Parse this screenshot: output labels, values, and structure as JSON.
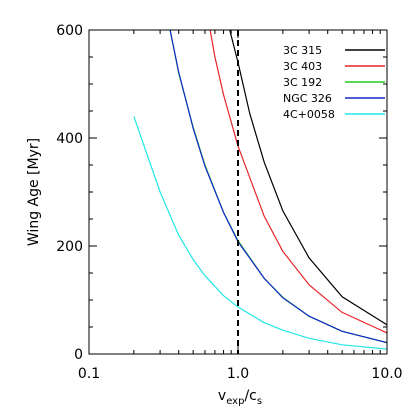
{
  "chart_data": {
    "type": "line",
    "xlabel": {
      "main": "v",
      "sub1": "exp",
      "slash": "/c",
      "sub2": "s"
    },
    "ylabel": "Wing Age [Myr]",
    "x_scale": "log",
    "xlim": [
      0.1,
      10.0
    ],
    "ylim": [
      0,
      600
    ],
    "xticks": [
      0.1,
      1.0,
      10.0
    ],
    "xtick_labels": [
      "0.1",
      "1.0",
      "10.0"
    ],
    "yticks": [
      0,
      200,
      400,
      600
    ],
    "ytick_labels": [
      "0",
      "200",
      "400",
      "600"
    ],
    "legend_position": "top-right",
    "reference_line": {
      "x": 1.0,
      "style": "dashed",
      "color": "#000000"
    },
    "series": [
      {
        "name": "3C 315",
        "color": "#000000",
        "points": [
          [
            0.88,
            600
          ],
          [
            1.0,
            540
          ],
          [
            1.2,
            445
          ],
          [
            1.5,
            355
          ],
          [
            2.0,
            265
          ],
          [
            3.0,
            178
          ],
          [
            5.0,
            106
          ],
          [
            10.0,
            54
          ]
        ]
      },
      {
        "name": "3C 403",
        "color": "#e8252a",
        "points": [
          [
            0.65,
            600
          ],
          [
            0.7,
            550
          ],
          [
            0.8,
            480
          ],
          [
            1.0,
            385
          ],
          [
            1.5,
            255
          ],
          [
            2.0,
            190
          ],
          [
            3.0,
            128
          ],
          [
            5.0,
            77
          ],
          [
            10.0,
            39
          ]
        ]
      },
      {
        "name": "3C 192",
        "color": "#22cc22",
        "points": [
          [
            0.35,
            600
          ],
          [
            0.4,
            520
          ],
          [
            0.5,
            420
          ],
          [
            0.6,
            350
          ],
          [
            0.8,
            262
          ],
          [
            1.0,
            210
          ],
          [
            1.5,
            140
          ],
          [
            2.0,
            105
          ],
          [
            3.0,
            70
          ],
          [
            5.0,
            42
          ],
          [
            10.0,
            21
          ]
        ]
      },
      {
        "name": "NGC 326",
        "color": "#1028c8",
        "points": [
          [
            0.35,
            600
          ],
          [
            0.4,
            522
          ],
          [
            0.5,
            418
          ],
          [
            0.6,
            348
          ],
          [
            0.8,
            262
          ],
          [
            1.0,
            208
          ],
          [
            1.5,
            140
          ],
          [
            2.0,
            104
          ],
          [
            3.0,
            70
          ],
          [
            5.0,
            42
          ],
          [
            10.0,
            21
          ]
        ]
      },
      {
        "name": "4C+0058",
        "color": "#22e6e6",
        "points": [
          [
            0.2,
            440
          ],
          [
            0.3,
            300
          ],
          [
            0.4,
            220
          ],
          [
            0.5,
            175
          ],
          [
            0.6,
            145
          ],
          [
            0.8,
            108
          ],
          [
            1.0,
            87
          ],
          [
            1.5,
            58
          ],
          [
            2.0,
            44
          ],
          [
            3.0,
            29
          ],
          [
            5.0,
            17
          ],
          [
            10.0,
            9
          ]
        ]
      }
    ]
  }
}
